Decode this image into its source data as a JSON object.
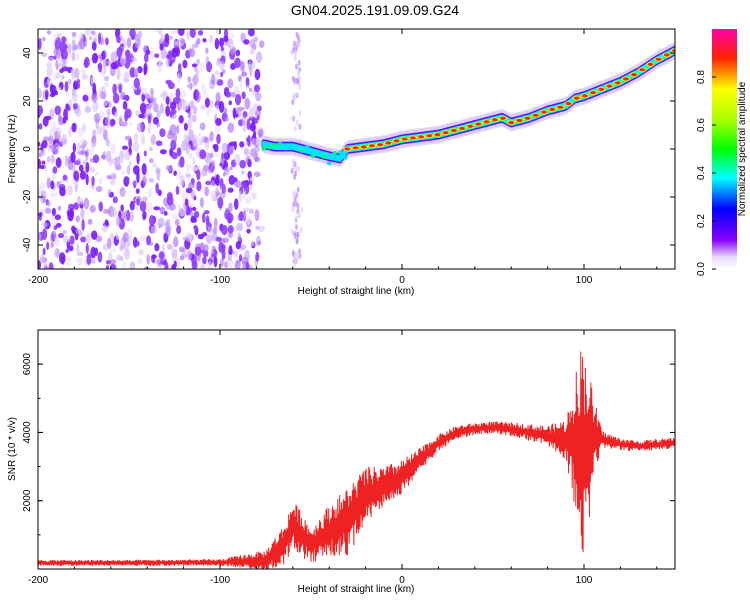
{
  "figure_title": "GN04.2025.191.09.09.G24",
  "colors": {
    "signal": "#ee2222",
    "frame": "#000000"
  },
  "chart_data": [
    {
      "type": "heatmap",
      "title": "",
      "xlabel": "Height of straight line (km)",
      "ylabel": "Frequency (Hz)",
      "xlim": [
        -200,
        150
      ],
      "ylim": [
        -50,
        50
      ],
      "xticks": [
        -200,
        -100,
        0,
        100
      ],
      "yticks": [
        -40,
        -20,
        0,
        20,
        40
      ],
      "colorbar": {
        "label": "Normalized spectral amplitude",
        "range": [
          0,
          1
        ],
        "ticks": [
          "0.0",
          "0.2",
          "0.4",
          "0.6",
          "0.8"
        ],
        "colormap": "rainbow (white-violet-blue-cyan-green-yellow-red-magenta)"
      },
      "noise_region_x": [
        -200,
        -77
      ],
      "gap_streak_x": -58,
      "ridge": {
        "description": "peak frequency of normalized spectral amplitude vs height",
        "x": [
          -76,
          -70,
          -60,
          -50,
          -40,
          -34,
          -30,
          -20,
          -10,
          0,
          10,
          20,
          30,
          40,
          50,
          55,
          60,
          70,
          80,
          90,
          95,
          100,
          110,
          120,
          130,
          140,
          150
        ],
        "y": [
          2,
          1,
          1,
          -1,
          -3,
          -4,
          0,
          1,
          2,
          4,
          5,
          6,
          8,
          10,
          12,
          13,
          11,
          13,
          16,
          18,
          21,
          22,
          25,
          28,
          32,
          37,
          41
        ]
      }
    },
    {
      "type": "line",
      "title": "",
      "xlabel": "Height of straight line (km)",
      "ylabel": "SNR (10 * v/v)",
      "xlim": [
        -200,
        150
      ],
      "ylim": [
        0,
        7000
      ],
      "xticks": [
        -200,
        -100,
        0,
        100
      ],
      "yticks": [
        2000,
        4000,
        6000
      ],
      "envelope": {
        "description": "approximate mean SNR and fluctuation amplitude vs height",
        "x": [
          -200,
          -150,
          -100,
          -75,
          -65,
          -60,
          -55,
          -50,
          -40,
          -30,
          -20,
          -10,
          0,
          10,
          20,
          30,
          40,
          50,
          60,
          70,
          80,
          90,
          95,
          98,
          100,
          102,
          105,
          110,
          120,
          130,
          140,
          150
        ],
        "mean": [
          180,
          180,
          190,
          250,
          700,
          1300,
          1000,
          700,
          1100,
          1400,
          2100,
          2400,
          2700,
          3200,
          3700,
          4000,
          4100,
          4150,
          4100,
          4000,
          3900,
          3800,
          3700,
          3600,
          3500,
          3600,
          3800,
          3800,
          3650,
          3600,
          3650,
          3700
        ],
        "amplitude": [
          90,
          90,
          100,
          300,
          600,
          700,
          700,
          500,
          800,
          1000,
          900,
          600,
          500,
          350,
          250,
          200,
          180,
          180,
          200,
          250,
          300,
          600,
          1900,
          3000,
          3200,
          2600,
          1300,
          250,
          180,
          160,
          160,
          160
        ]
      }
    }
  ]
}
